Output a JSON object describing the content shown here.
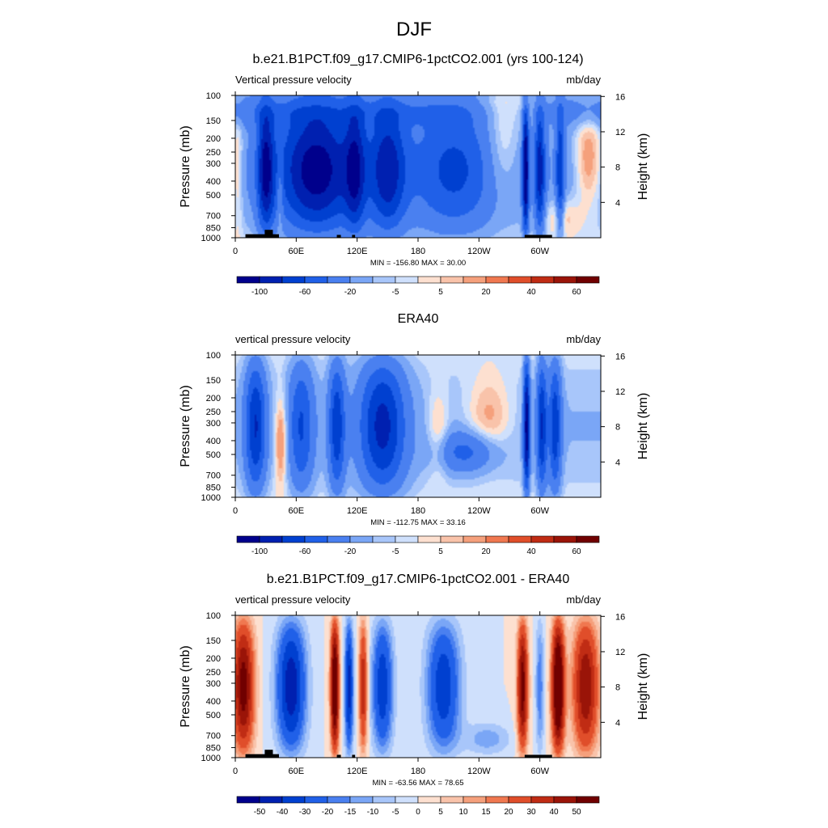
{
  "figure_title": "DJF",
  "chart_data": [
    {
      "type": "heatmap",
      "title": "b.e21.B1PCT.f09_g17.CMIP6-1pctCO2.001 (yrs 100-124)",
      "left_label": "Vertical pressure velocity",
      "right_label": "mb/day",
      "ylabel": "Pressure (mb)",
      "ylabel_right": "Height (km)",
      "x_ticks": [
        "0",
        "60E",
        "120E",
        "180",
        "120W",
        "60W"
      ],
      "x_tick_lon": [
        0,
        60,
        120,
        180,
        240,
        300
      ],
      "xlim": [
        0,
        360
      ],
      "y_ticks": [
        "100",
        "150",
        "200",
        "250",
        "300",
        "400",
        "500",
        "700",
        "850",
        "1000"
      ],
      "y_tick_values": [
        100,
        150,
        200,
        250,
        300,
        400,
        500,
        700,
        850,
        1000
      ],
      "ylim": [
        1000,
        100
      ],
      "y_scale": "log",
      "height_ticks": [
        "16",
        "12",
        "8",
        "4"
      ],
      "height_tick_values": [
        16,
        12,
        8,
        4
      ],
      "stats": "MIN = -156.80  MAX =  30.00",
      "min": -156.8,
      "max": 30.0,
      "colorbar_labels": [
        "-100",
        "-60",
        "-20",
        "-5",
        "5",
        "20",
        "40",
        "60"
      ],
      "colorbar_label_slots": [
        1,
        3,
        5,
        7,
        9,
        11,
        13,
        15
      ],
      "colorbar_colors": [
        "#00008c",
        "#0020b0",
        "#0040d0",
        "#2060e8",
        "#4a80f0",
        "#7aa6f6",
        "#a8c6fa",
        "#cfe0fc",
        "#fde0d0",
        "#f9c3aa",
        "#f5a07c",
        "#f07850",
        "#e04e2a",
        "#c02c14",
        "#9a1408",
        "#700000"
      ],
      "terrain": true
    },
    {
      "type": "heatmap",
      "title": "ERA40",
      "left_label": "vertical pressure velocity",
      "right_label": "mb/day",
      "ylabel": "Pressure (mb)",
      "ylabel_right": "Height (km)",
      "x_ticks": [
        "0",
        "60E",
        "120E",
        "180",
        "120W",
        "60W"
      ],
      "x_tick_lon": [
        0,
        60,
        120,
        180,
        240,
        300
      ],
      "xlim": [
        0,
        360
      ],
      "y_ticks": [
        "100",
        "150",
        "200",
        "250",
        "300",
        "400",
        "500",
        "700",
        "850",
        "1000"
      ],
      "y_tick_values": [
        100,
        150,
        200,
        250,
        300,
        400,
        500,
        700,
        850,
        1000
      ],
      "ylim": [
        1000,
        100
      ],
      "y_scale": "log",
      "height_ticks": [
        "16",
        "12",
        "8",
        "4"
      ],
      "height_tick_values": [
        16,
        12,
        8,
        4
      ],
      "stats": "MIN = -112.75  MAX =  33.16",
      "min": -112.75,
      "max": 33.16,
      "colorbar_labels": [
        "-100",
        "-60",
        "-20",
        "-5",
        "5",
        "20",
        "40",
        "60"
      ],
      "colorbar_label_slots": [
        1,
        3,
        5,
        7,
        9,
        11,
        13,
        15
      ],
      "colorbar_colors": [
        "#00008c",
        "#0020b0",
        "#0040d0",
        "#2060e8",
        "#4a80f0",
        "#7aa6f6",
        "#a8c6fa",
        "#cfe0fc",
        "#fde0d0",
        "#f9c3aa",
        "#f5a07c",
        "#f07850",
        "#e04e2a",
        "#c02c14",
        "#9a1408",
        "#700000"
      ],
      "terrain": false
    },
    {
      "type": "heatmap",
      "title": "b.e21.B1PCT.f09_g17.CMIP6-1pctCO2.001 - ERA40",
      "left_label": "vertical pressure velocity",
      "right_label": "mb/day",
      "ylabel": "Pressure (mb)",
      "ylabel_right": "Height (km)",
      "x_ticks": [
        "0",
        "60E",
        "120E",
        "180",
        "120W",
        "60W"
      ],
      "x_tick_lon": [
        0,
        60,
        120,
        180,
        240,
        300
      ],
      "xlim": [
        0,
        360
      ],
      "y_ticks": [
        "100",
        "150",
        "200",
        "250",
        "300",
        "400",
        "500",
        "700",
        "850",
        "1000"
      ],
      "y_tick_values": [
        100,
        150,
        200,
        250,
        300,
        400,
        500,
        700,
        850,
        1000
      ],
      "ylim": [
        1000,
        100
      ],
      "y_scale": "log",
      "height_ticks": [
        "16",
        "12",
        "8",
        "4"
      ],
      "height_tick_values": [
        16,
        12,
        8,
        4
      ],
      "stats": "MIN = -63.56  MAX =  78.65",
      "min": -63.56,
      "max": 78.65,
      "colorbar_labels": [
        "-50",
        "-40",
        "-30",
        "-20",
        "-15",
        "-10",
        "-5",
        "0",
        "5",
        "10",
        "15",
        "20",
        "30",
        "40",
        "50"
      ],
      "colorbar_label_slots": [
        1,
        2,
        3,
        4,
        5,
        6,
        7,
        8,
        9,
        10,
        11,
        12,
        13,
        14,
        15
      ],
      "colorbar_colors": [
        "#00008c",
        "#0020b0",
        "#0040d0",
        "#2060e8",
        "#4a80f0",
        "#7aa6f6",
        "#a8c6fa",
        "#cfe0fc",
        "#fde0d0",
        "#f9c3aa",
        "#f5a07c",
        "#f07850",
        "#e04e2a",
        "#c02c14",
        "#9a1408",
        "#700000"
      ],
      "terrain": true
    }
  ]
}
